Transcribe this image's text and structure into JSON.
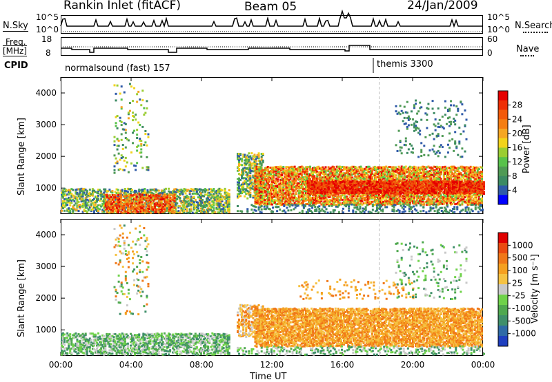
{
  "header": {
    "station": "Rankin Inlet (fitACF)",
    "beam": "Beam 05",
    "date": "24/Jan/2009"
  },
  "status_panels": {
    "nsky_label": "N.Sky",
    "nsky_ticks": [
      "10^5",
      "10^0"
    ],
    "nsearch_label": "N.Search",
    "freq_label_1": "Freq.",
    "freq_label_2": "[MHz]",
    "freq_ticks": [
      "18",
      "8"
    ],
    "nave_label": "Nave",
    "nave_ticks": [
      "60",
      "0"
    ],
    "cpid_label": "CPID",
    "cpid_1": "normalsound (fast) 157",
    "cpid_2": "themis 3300"
  },
  "chart_data": [
    {
      "type": "heatmap",
      "quantity": "Power",
      "ylabel": "Slant Range [km]",
      "yticks": [
        1000,
        2000,
        3000,
        4000
      ],
      "ylim": [
        180,
        4500
      ],
      "xlim": [
        "00:00",
        "24:00"
      ],
      "colorbar_label": "Power [dB]",
      "colorbar_ticks": [
        "28",
        "24",
        "20",
        "16",
        "12",
        "8",
        "4"
      ],
      "colorbar_colors": [
        "#0000ff",
        "#2f5aa8",
        "#3c8a63",
        "#4f9a55",
        "#58c24b",
        "#9acd32",
        "#f2d31b",
        "#f5a623",
        "#f57e12",
        "#f25a0a",
        "#ee2e05",
        "#e60000"
      ]
    },
    {
      "type": "heatmap",
      "quantity": "Velocity",
      "ylabel": "Slant Range [km]",
      "yticks": [
        1000,
        2000,
        3000,
        4000
      ],
      "ylim": [
        180,
        4500
      ],
      "xlim": [
        "00:00",
        "24:00"
      ],
      "colorbar_label": "Velocity [m s⁻¹]",
      "colorbar_ticks": [
        "1000",
        "500",
        "100",
        "25",
        "-25",
        "-100",
        "-500",
        "-1000"
      ],
      "colorbar_colors": [
        "#1f3fbf",
        "#2f6aa6",
        "#3f8f6a",
        "#4fa84f",
        "#6fd24a",
        "#c8c8c8",
        "#f5c242",
        "#f5a020",
        "#f07818",
        "#ea4a10",
        "#e00000"
      ],
      "xticks": [
        "00:00",
        "04:00",
        "08:00",
        "12:00",
        "16:00",
        "20:00",
        "00:00"
      ],
      "xlabel": "Time UT"
    }
  ]
}
